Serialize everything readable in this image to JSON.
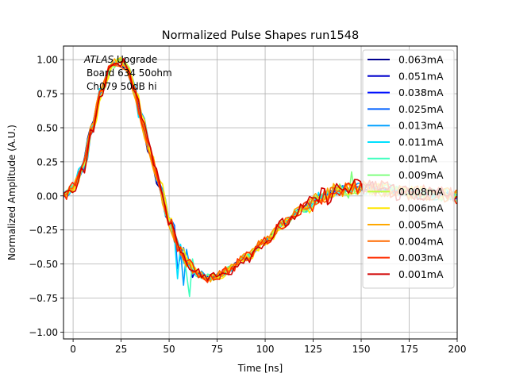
{
  "chart_data": {
    "type": "line",
    "title": "Normalized Pulse Shapes run1548",
    "xlabel": "Time [ns]",
    "ylabel": "Normalized Amplitude (A.U.)",
    "xlim": [
      -5,
      200
    ],
    "ylim": [
      -1.05,
      1.1
    ],
    "xticks": [
      0,
      25,
      50,
      75,
      100,
      125,
      150,
      175,
      200
    ],
    "yticks": [
      -1.0,
      -0.75,
      -0.5,
      -0.25,
      0.0,
      0.25,
      0.5,
      0.75,
      1.0
    ],
    "xtick_labels": [
      "0",
      "25",
      "50",
      "75",
      "100",
      "125",
      "150",
      "175",
      "200"
    ],
    "ytick_labels": [
      "−1.00",
      "−0.75",
      "−0.50",
      "−0.25",
      "0.00",
      "0.25",
      "0.50",
      "0.75",
      "1.00"
    ],
    "grid": true,
    "legend_position": "top-right",
    "annotation": {
      "line1_italic": "ATLAS",
      "line1_rest": " Upgrade",
      "line2": "Board 634 50ohm",
      "line3": "Ch079 50dB hi"
    },
    "shape_profile": {
      "t": [
        -5,
        0,
        5,
        10,
        15,
        20,
        24,
        28,
        32,
        36,
        40,
        45,
        50,
        55,
        60,
        65,
        70,
        75,
        80,
        90,
        100,
        110,
        120,
        130,
        140,
        150,
        160,
        170,
        180,
        190,
        200
      ],
      "y": [
        0.0,
        0.06,
        0.2,
        0.5,
        0.78,
        0.95,
        0.99,
        0.94,
        0.78,
        0.55,
        0.32,
        0.08,
        -0.18,
        -0.38,
        -0.5,
        -0.57,
        -0.6,
        -0.59,
        -0.55,
        -0.45,
        -0.33,
        -0.2,
        -0.09,
        0.0,
        0.05,
        0.06,
        0.05,
        0.03,
        0.02,
        0.01,
        0.0
      ]
    },
    "series": [
      {
        "name": "0.063mA",
        "color": "#00008f",
        "noise": 0.01,
        "spike_t": null,
        "spike_a": 0
      },
      {
        "name": "0.051mA",
        "color": "#0000cc",
        "noise": 0.015,
        "spike_t": 62,
        "spike_a": -0.08
      },
      {
        "name": "0.038mA",
        "color": "#0010ff",
        "noise": 0.015,
        "spike_t": 47,
        "spike_a": -0.12
      },
      {
        "name": "0.025mA",
        "color": "#0060ff",
        "noise": 0.02,
        "spike_t": 55,
        "spike_a": -0.3
      },
      {
        "name": "0.013mA",
        "color": "#00a0ff",
        "noise": 0.025,
        "spike_t": 57,
        "spike_a": -0.35
      },
      {
        "name": "0.011mA",
        "color": "#00e0ff",
        "noise": 0.025,
        "spike_t": 54,
        "spike_a": -0.3
      },
      {
        "name": "0.01mA",
        "color": "#40ffbf",
        "noise": 0.03,
        "spike_t": 60,
        "spike_a": -0.45
      },
      {
        "name": "0.009mA",
        "color": "#80ff80",
        "noise": 0.03,
        "spike_t": 145,
        "spike_a": 0.08
      },
      {
        "name": "0.008mA",
        "color": "#c0ff40",
        "noise": 0.03,
        "spike_t": null,
        "spike_a": 0
      },
      {
        "name": "0.006mA",
        "color": "#ffe600",
        "noise": 0.03,
        "spike_t": null,
        "spike_a": 0
      },
      {
        "name": "0.005mA",
        "color": "#ffa800",
        "noise": 0.035,
        "spike_t": null,
        "spike_a": 0
      },
      {
        "name": "0.004mA",
        "color": "#ff6a00",
        "noise": 0.035,
        "spike_t": null,
        "spike_a": 0
      },
      {
        "name": "0.003mA",
        "color": "#ff2d00",
        "noise": 0.04,
        "spike_t": null,
        "spike_a": 0
      },
      {
        "name": "0.001mA",
        "color": "#d00000",
        "noise": 0.045,
        "spike_t": null,
        "spike_a": 0
      }
    ]
  }
}
